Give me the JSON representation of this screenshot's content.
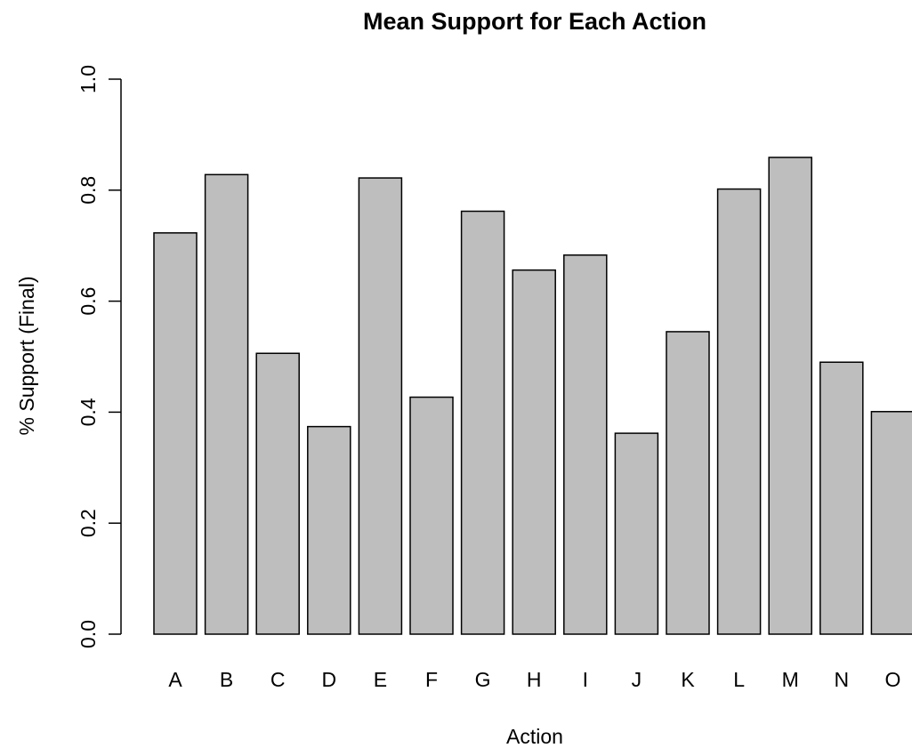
{
  "chart_data": {
    "type": "bar",
    "title": "Mean Support for Each Action",
    "xlabel": "Action",
    "ylabel": "% Support (Final)",
    "categories": [
      "A",
      "B",
      "C",
      "D",
      "E",
      "F",
      "G",
      "H",
      "I",
      "J",
      "K",
      "L",
      "M",
      "N",
      "O"
    ],
    "values": [
      0.723,
      0.828,
      0.506,
      0.374,
      0.822,
      0.427,
      0.762,
      0.656,
      0.683,
      0.362,
      0.545,
      0.802,
      0.859,
      0.49,
      0.401
    ],
    "ylim": [
      0,
      1.0
    ],
    "yticks": [
      "0.0",
      "0.2",
      "0.4",
      "0.6",
      "0.8",
      "1.0"
    ],
    "grid": false,
    "bar_color": "#bebebe",
    "edge_color": "#000000"
  }
}
